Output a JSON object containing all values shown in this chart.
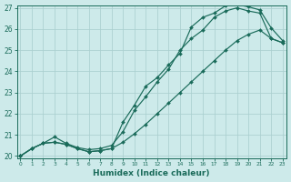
{
  "xlabel": "Humidex (Indice chaleur)",
  "xlim_min": -0.3,
  "xlim_max": 23.3,
  "ylim_min": 19.88,
  "ylim_max": 27.12,
  "yticks": [
    20,
    21,
    22,
    23,
    24,
    25,
    26,
    27
  ],
  "xticks": [
    0,
    1,
    2,
    3,
    4,
    5,
    6,
    7,
    8,
    9,
    10,
    11,
    12,
    13,
    14,
    15,
    16,
    17,
    18,
    19,
    20,
    21,
    22,
    23
  ],
  "bg_color": "#cdeaea",
  "grid_color": "#aacfcf",
  "line_color": "#1a6b5a",
  "curve1_x": [
    0,
    1,
    2,
    3,
    4,
    5,
    6,
    7,
    8,
    9,
    10,
    11,
    12,
    13,
    14,
    15,
    16,
    17,
    18,
    19,
    20,
    21,
    22,
    23
  ],
  "curve1_y": [
    20.0,
    20.35,
    20.6,
    20.65,
    20.55,
    20.35,
    20.2,
    20.25,
    20.35,
    21.6,
    22.4,
    23.3,
    23.7,
    24.3,
    24.85,
    26.1,
    26.55,
    26.75,
    27.1,
    27.15,
    27.05,
    26.9,
    26.05,
    25.45
  ],
  "curve2_x": [
    0,
    1,
    2,
    3,
    4,
    5,
    6,
    7,
    8,
    9,
    10,
    11,
    12,
    13,
    14,
    15,
    16,
    17,
    18,
    19,
    20,
    21,
    22,
    23
  ],
  "curve2_y": [
    20.0,
    20.35,
    20.6,
    20.9,
    20.6,
    20.4,
    20.3,
    20.35,
    20.5,
    21.15,
    22.15,
    22.8,
    23.5,
    24.1,
    25.0,
    25.55,
    25.95,
    26.55,
    26.85,
    27.0,
    26.85,
    26.75,
    25.55,
    25.35
  ],
  "curve3_x": [
    0,
    1,
    2,
    3,
    4,
    5,
    6,
    7,
    8,
    9,
    10,
    11,
    12,
    13,
    14,
    15,
    16,
    17,
    18,
    19,
    20,
    21,
    22,
    23
  ],
  "curve3_y": [
    20.0,
    20.35,
    20.6,
    20.65,
    20.55,
    20.35,
    20.2,
    20.25,
    20.35,
    20.65,
    21.05,
    21.5,
    22.0,
    22.5,
    23.0,
    23.5,
    24.0,
    24.5,
    25.0,
    25.45,
    25.75,
    25.95,
    25.55,
    25.35
  ]
}
